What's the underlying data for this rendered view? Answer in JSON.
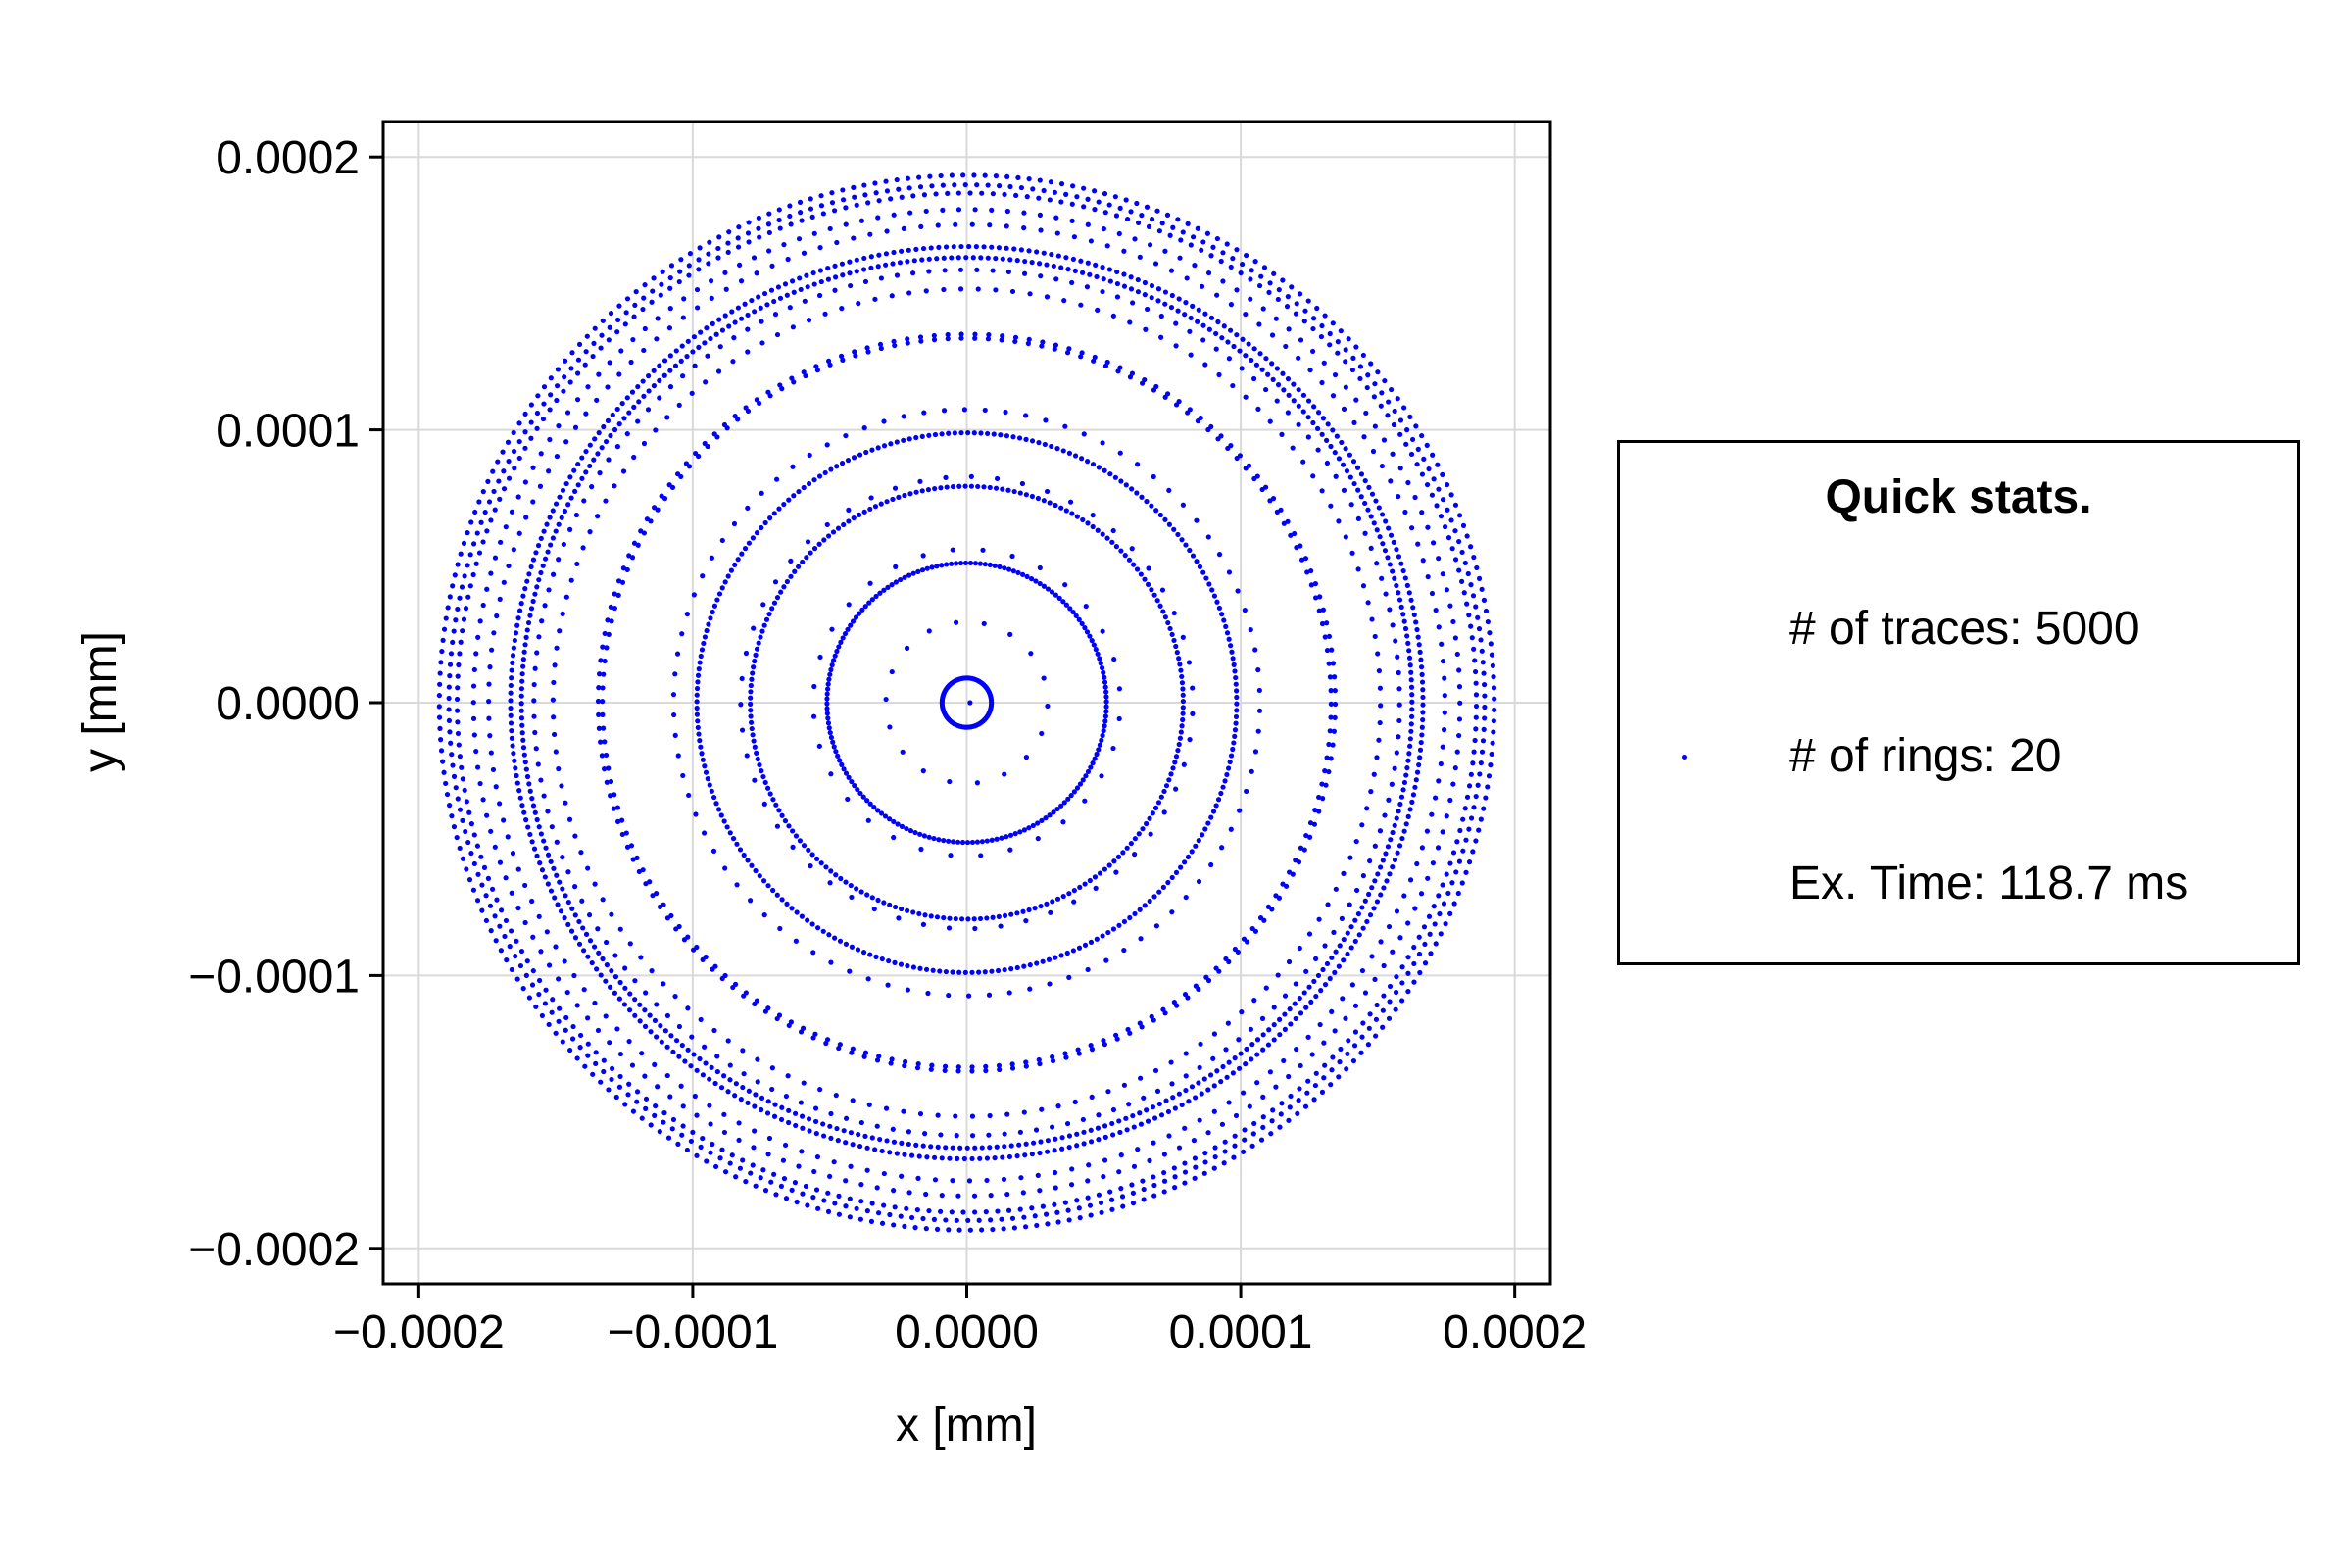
{
  "colors": {
    "series": "#0000ff",
    "grid": "#d9d9d9",
    "axis": "#000000"
  },
  "chart_data": {
    "type": "scatter",
    "title": "",
    "xlabel": "x [mm]",
    "ylabel": "y [mm]",
    "xlim": [
      -0.000213,
      0.000213
    ],
    "ylim": [
      -0.000213,
      0.000213
    ],
    "grid": true,
    "xticks": [
      -0.0002,
      -0.0001,
      0.0,
      0.0001,
      0.0002
    ],
    "yticks": [
      -0.0002,
      -0.0001,
      0.0,
      0.0001,
      0.0002
    ],
    "xtick_labels": [
      "−0.0002",
      "−0.0001",
      "0.0000",
      "0.0001",
      "0.0002"
    ],
    "ytick_labels": [
      "−0.0002",
      "−0.0001",
      "0.0000",
      "0.0001",
      "0.0002"
    ],
    "rings": [
      {
        "r": 1.2e-06,
        "n": 1
      },
      {
        "r": 9e-06,
        "n": 80
      },
      {
        "r": 2.95e-05,
        "n": 18
      },
      {
        "r": 5.1e-05,
        "n": 180
      },
      {
        "r": 5.6e-05,
        "n": 32
      },
      {
        "r": 7.9e-05,
        "n": 220
      },
      {
        "r": 8.25e-05,
        "n": 55
      },
      {
        "r": 9.85e-05,
        "n": 260
      },
      {
        "r": 0.000107,
        "n": 90
      },
      {
        "r": 0.000133,
        "n": 170
      },
      {
        "r": 0.0001345,
        "n": 170
      },
      {
        "r": 0.000151,
        "n": 150
      },
      {
        "r": 0.000158,
        "n": 170
      },
      {
        "r": 0.0001625,
        "n": 380
      },
      {
        "r": 0.0001665,
        "n": 380
      },
      {
        "r": 0.0001745,
        "n": 175
      },
      {
        "r": 0.00018,
        "n": 190
      },
      {
        "r": 0.000186,
        "n": 280
      },
      {
        "r": 0.000189,
        "n": 290
      },
      {
        "r": 0.0001925,
        "n": 300
      }
    ]
  },
  "legend": {
    "title": "Quick stats.",
    "entries": [
      "# of traces: 5000",
      "# of rings: 20",
      "Ex. Time: 118.7 ms"
    ],
    "position": "right"
  }
}
